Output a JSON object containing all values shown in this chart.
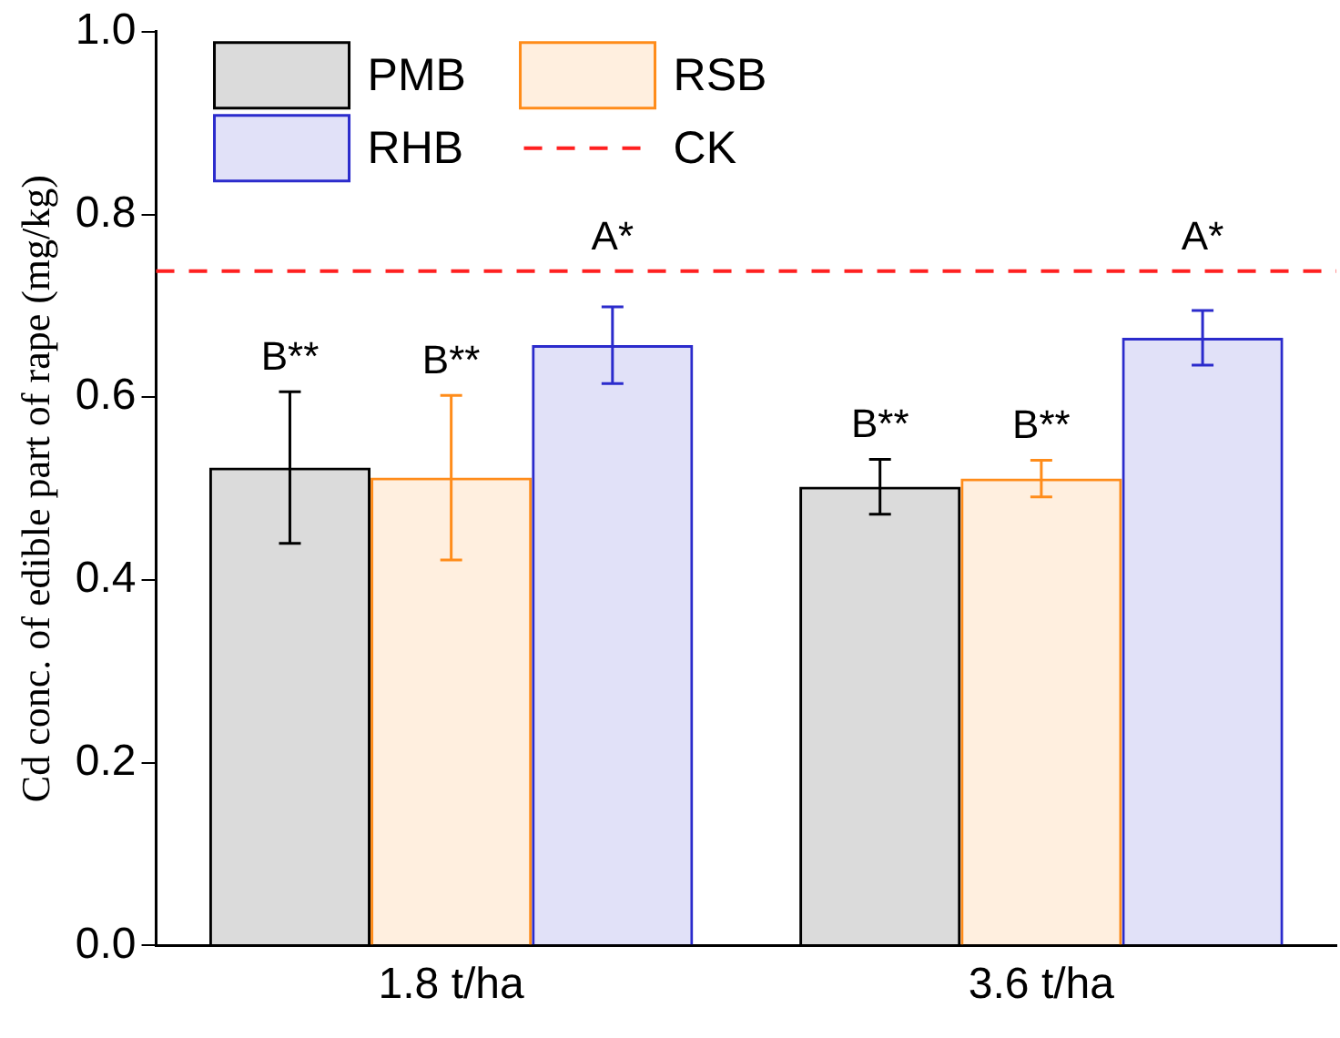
{
  "chart_data": {
    "type": "bar",
    "ylabel": "Cd conc. of edible part of rape (mg/kg)",
    "categories": [
      "1.8 t/ha",
      "3.6 t/ha"
    ],
    "series": [
      {
        "name": "PMB",
        "color": "#000000",
        "values": [
          0.523,
          0.502
        ],
        "errors": [
          0.083,
          0.03
        ]
      },
      {
        "name": "RSB",
        "color": "#ff8c1a",
        "values": [
          0.512,
          0.511
        ],
        "errors": [
          0.09,
          0.02
        ]
      },
      {
        "name": "RHB",
        "color": "#2b2bcc",
        "values": [
          0.657,
          0.665
        ],
        "errors": [
          0.042,
          0.03
        ]
      }
    ],
    "ref_lines": [
      {
        "axis": "y",
        "value": 0.738,
        "label": "CK",
        "color": "#ff2020",
        "line_style": "dashed"
      }
    ],
    "annotations": [
      "B**",
      "B**",
      "A*",
      "B**",
      "B**",
      "A*"
    ],
    "ylim": [
      0,
      1
    ],
    "yticks": [
      {
        "value": 0,
        "label": "0.0"
      },
      0.2,
      0.4,
      0.6,
      0.8,
      {
        "value": 1,
        "label": "1.0"
      }
    ],
    "grid": false,
    "legend": "top left"
  }
}
